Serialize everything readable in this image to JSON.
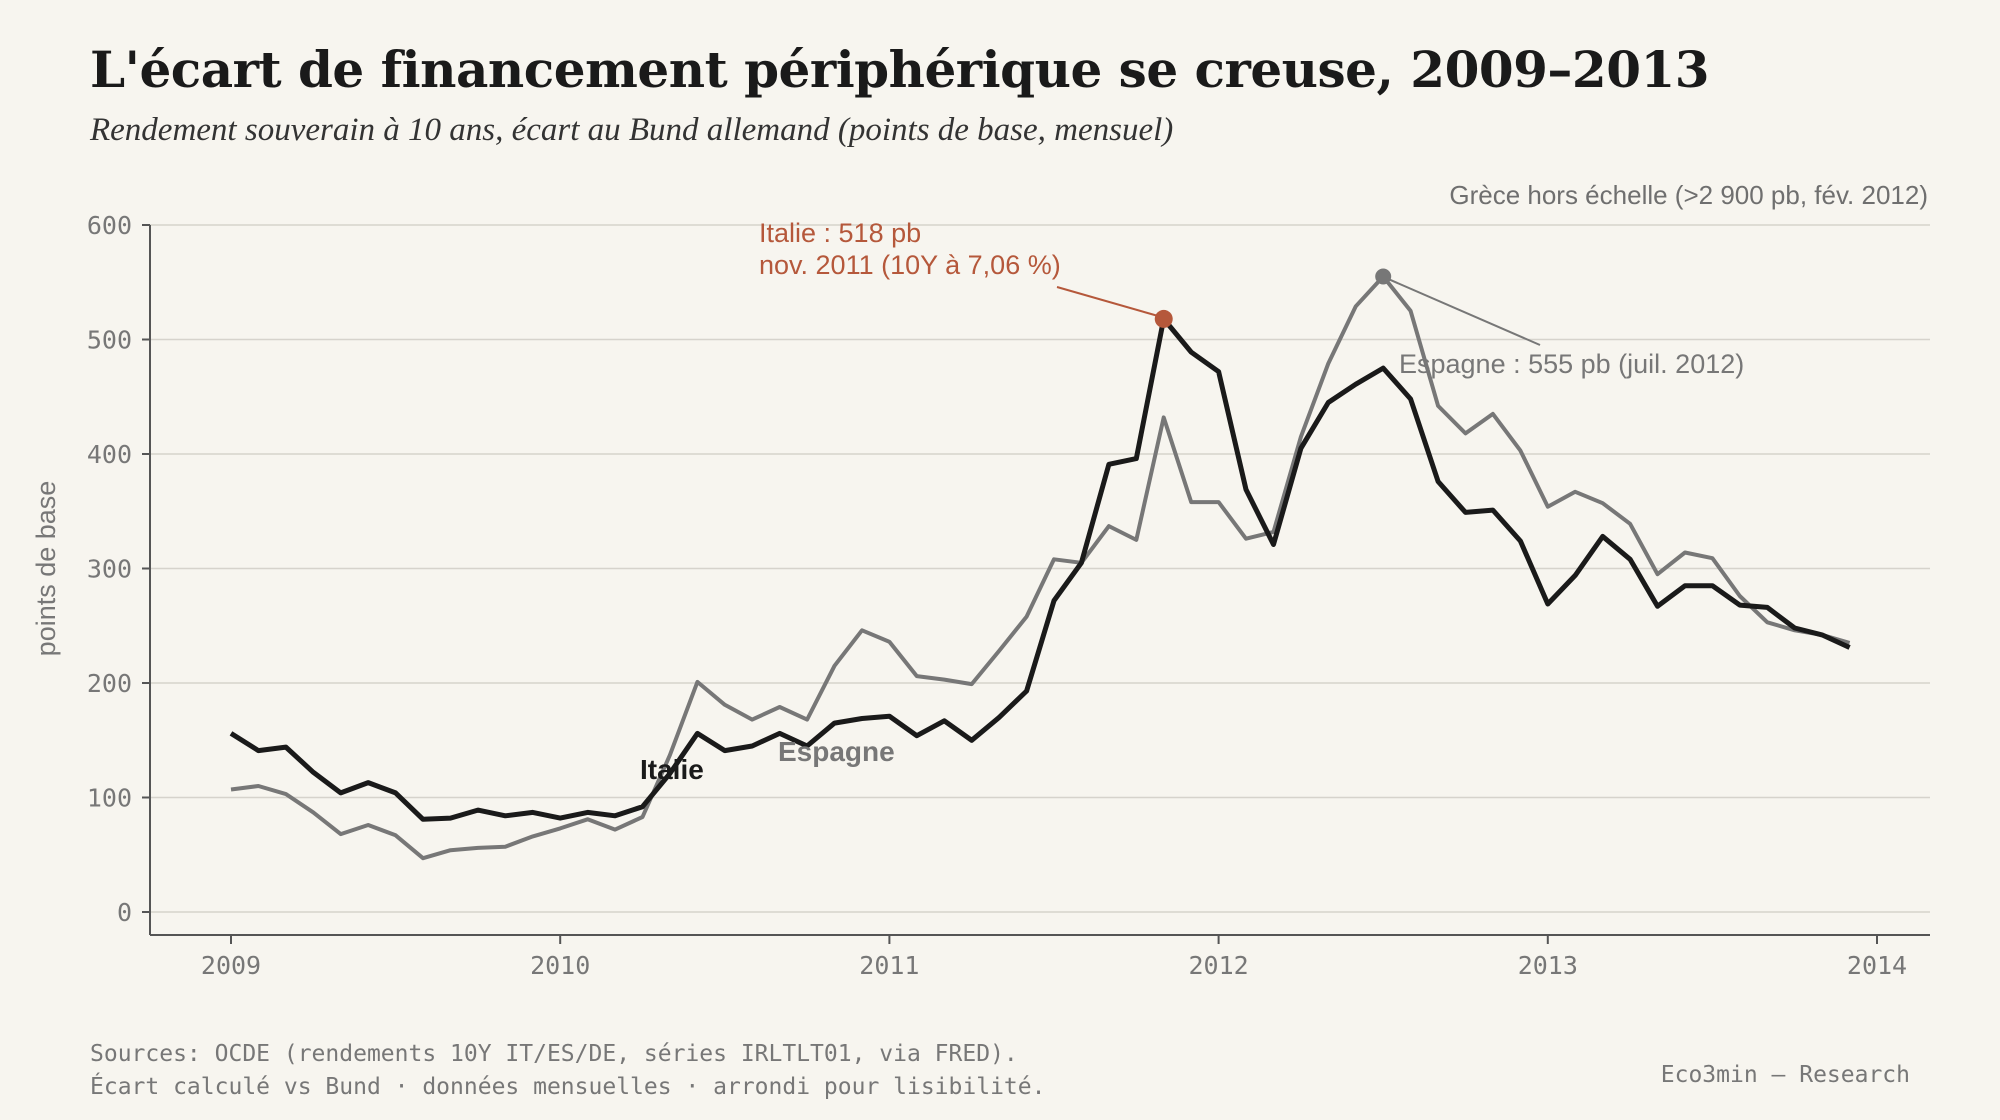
{
  "header": {
    "title": "L'écart de financement périphérique se creuse, 2009–2013",
    "subtitle": "Rendement souverain à 10 ans, écart au Bund allemand (points de base, mensuel)",
    "note": "Grèce hors échelle (>2 900 pb, fév. 2012)"
  },
  "footer": {
    "source_line1": "Sources: OCDE (rendements 10Y IT/ES/DE, séries IRLTLT01, via FRED).",
    "source_line2": "Écart calculé vs Bund · données mensuelles · arrondi pour lisibilité.",
    "brand": "Eco3min — Research"
  },
  "colors": {
    "italy": "#1a1a1a",
    "spain": "#777777",
    "highlight": "#b5583b",
    "background": "#f7f5ef"
  },
  "chart_data": {
    "type": "line",
    "ylabel": "points de base",
    "ylim": [
      0,
      600
    ],
    "yticks": [
      0,
      100,
      200,
      300,
      400,
      500,
      600
    ],
    "xlim": [
      2009,
      2014
    ],
    "xticks": [
      2009,
      2010,
      2011,
      2012,
      2013,
      2014
    ],
    "grid": "horizontal",
    "series": [
      {
        "name": "Italie",
        "values": [
          156,
          141,
          144,
          122,
          104,
          113,
          104,
          81,
          82,
          89,
          84,
          87,
          82,
          87,
          84,
          92,
          121,
          156,
          141,
          145,
          156,
          145,
          165,
          169,
          171,
          154,
          167,
          150,
          170,
          193,
          272,
          305,
          391,
          396,
          518,
          489,
          472,
          369,
          321,
          405,
          445,
          461,
          475,
          448,
          376,
          349,
          351,
          324,
          269,
          294,
          328,
          308,
          267,
          285,
          285,
          268,
          266,
          248,
          242,
          231
        ]
      },
      {
        "name": "Espagne",
        "values": [
          107,
          110,
          103,
          87,
          68,
          76,
          67,
          47,
          54,
          56,
          57,
          66,
          73,
          81,
          72,
          83,
          137,
          201,
          181,
          168,
          179,
          168,
          215,
          246,
          236,
          206,
          203,
          199,
          228,
          258,
          308,
          305,
          337,
          325,
          432,
          358,
          358,
          326,
          332,
          415,
          479,
          529,
          555,
          525,
          442,
          418,
          435,
          403,
          354,
          367,
          357,
          339,
          295,
          314,
          309,
          276,
          253,
          246,
          242,
          235
        ]
      }
    ],
    "labels": {
      "italy": "Italie",
      "spain": "Espagne"
    },
    "annotations": {
      "italy_peak_line1": "Italie : 518 pb",
      "italy_peak_line2": "nov. 2011 (10Y à 7,06 %)",
      "spain_peak": "Espagne : 555 pb (juil. 2012)"
    }
  }
}
